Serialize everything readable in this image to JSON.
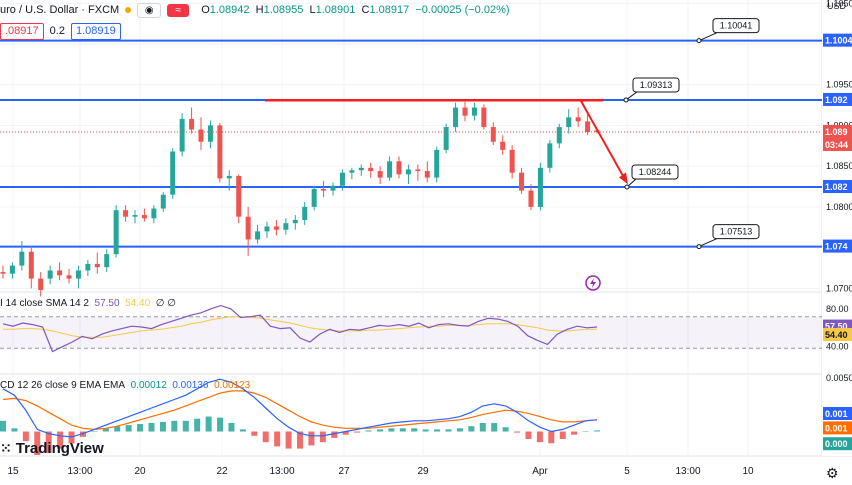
{
  "header": {
    "symbol": "uro / U.S. Dollar · FXCM",
    "open_label": "O",
    "open": "1.08942",
    "high_label": "H",
    "high": "1.08955",
    "low_label": "L",
    "low": "1.08901",
    "close_label": "C",
    "close": "1.08917",
    "change": "−0.00025 (−0.02%)",
    "sell_price": ".08917",
    "spread": "0.2",
    "buy_price": "1.08919",
    "currency": "USD",
    "icons": [
      "eye-icon",
      "wave-icon"
    ]
  },
  "colors": {
    "up": "#26a69a",
    "down": "#ef5350",
    "level": "#2962ff",
    "trend": "#f21f1f",
    "rsi": "#7e57c2",
    "sma": "#f7c948",
    "macd": "#2962ff",
    "signal": "#ff6d00",
    "hist_up": "#26a69a",
    "hist_down": "#ef5350"
  },
  "chart_data": [
    {
      "type": "candlestick",
      "x_tick_labels": [
        "15",
        "13:00",
        "20",
        "22",
        "13:00",
        "27",
        "29",
        "Apr",
        "5",
        "13:00",
        "10"
      ],
      "price_axis_labels": [
        "1.1050",
        "1.1004",
        "1.0950",
        "1.092",
        "1.0900",
        "1.089",
        "03:44",
        "1.0850",
        "1.082",
        "1.0800",
        "1.0750",
        "1.074",
        "1.0700"
      ],
      "ylim": [
        1.0698,
        1.1054
      ],
      "levels": [
        1.10041,
        1.09313,
        1.08244,
        1.07513
      ],
      "level_labels": [
        "1.10041",
        "1.09313",
        "1.08244",
        "1.07513"
      ],
      "resistance_line": 1.0931,
      "projection": {
        "from": 1.093,
        "to": 1.0824
      },
      "candles": [
        [
          1.072,
          1.0728,
          1.0712,
          1.0718
        ],
        [
          1.0718,
          1.0732,
          1.0712,
          1.0728
        ],
        [
          1.0728,
          1.0758,
          1.0722,
          1.0745
        ],
        [
          1.0745,
          1.0752,
          1.07,
          1.0712
        ],
        [
          1.0712,
          1.072,
          1.069,
          1.0698
        ],
        [
          1.0712,
          1.0728,
          1.0705,
          1.0722
        ],
        [
          1.0722,
          1.0732,
          1.071,
          1.0716
        ],
        [
          1.0716,
          1.0724,
          1.0706,
          1.0712
        ],
        [
          1.0712,
          1.0728,
          1.07,
          1.0722
        ],
        [
          1.0722,
          1.0735,
          1.0715,
          1.073
        ],
        [
          1.073,
          1.0744,
          1.0718,
          1.0726
        ],
        [
          1.0726,
          1.0748,
          1.072,
          1.0742
        ],
        [
          1.0742,
          1.0802,
          1.0738,
          1.0796
        ],
        [
          1.0796,
          1.0802,
          1.0782,
          1.0788
        ],
        [
          1.0788,
          1.0796,
          1.078,
          1.079
        ],
        [
          1.079,
          1.0798,
          1.0782,
          1.0786
        ],
        [
          1.0786,
          1.0802,
          1.078,
          1.0798
        ],
        [
          1.0798,
          1.0818,
          1.0794,
          1.0815
        ],
        [
          1.0815,
          1.0872,
          1.081,
          1.0868
        ],
        [
          1.0868,
          1.0915,
          1.0862,
          1.0908
        ],
        [
          1.0908,
          1.0922,
          1.089,
          1.0895
        ],
        [
          1.0895,
          1.091,
          1.087,
          1.088
        ],
        [
          1.088,
          1.0906,
          1.0872,
          1.09
        ],
        [
          1.09,
          1.0903,
          1.083,
          1.0835
        ],
        [
          1.0835,
          1.0845,
          1.082,
          1.0838
        ],
        [
          1.0838,
          1.084,
          1.078,
          1.0788
        ],
        [
          1.0788,
          1.08,
          1.074,
          1.076
        ],
        [
          1.076,
          1.0778,
          1.0755,
          1.077
        ],
        [
          1.077,
          1.0782,
          1.0762,
          1.0776
        ],
        [
          1.0776,
          1.0784,
          1.0765,
          1.0772
        ],
        [
          1.0772,
          1.0786,
          1.0766,
          1.078
        ],
        [
          1.078,
          1.079,
          1.0772,
          1.0784
        ],
        [
          1.0784,
          1.0806,
          1.0778,
          1.08
        ],
        [
          1.08,
          1.0826,
          1.0796,
          1.0822
        ],
        [
          1.0822,
          1.0832,
          1.0812,
          1.082
        ],
        [
          1.082,
          1.083,
          1.0814,
          1.0826
        ],
        [
          1.0826,
          1.0846,
          1.082,
          1.0842
        ],
        [
          1.0842,
          1.0848,
          1.0834,
          1.0845
        ],
        [
          1.0845,
          1.0852,
          1.0838,
          1.0848
        ],
        [
          1.0848,
          1.0854,
          1.0836,
          1.0844
        ],
        [
          1.0844,
          1.085,
          1.0828,
          1.0836
        ],
        [
          1.0836,
          1.0862,
          1.0832,
          1.0856
        ],
        [
          1.0856,
          1.0862,
          1.0835,
          1.084
        ],
        [
          1.084,
          1.0852,
          1.0828,
          1.0846
        ],
        [
          1.0846,
          1.0852,
          1.0832,
          1.0844
        ],
        [
          1.0844,
          1.0856,
          1.083,
          1.0836
        ],
        [
          1.0836,
          1.0874,
          1.083,
          1.087
        ],
        [
          1.087,
          1.0902,
          1.0866,
          1.0898
        ],
        [
          1.0898,
          1.0928,
          1.0892,
          1.0922
        ],
        [
          1.0922,
          1.0929,
          1.0905,
          1.0912
        ],
        [
          1.0912,
          1.0928,
          1.0906,
          1.0922
        ],
        [
          1.0922,
          1.0926,
          1.0895,
          1.0898
        ],
        [
          1.0898,
          1.0904,
          1.0876,
          1.088
        ],
        [
          1.088,
          1.0888,
          1.0864,
          1.087
        ],
        [
          1.087,
          1.0876,
          1.0835,
          1.0842
        ],
        [
          1.0842,
          1.0848,
          1.0816,
          1.082
        ],
        [
          1.082,
          1.0828,
          1.0796,
          1.08
        ],
        [
          1.08,
          1.0854,
          1.0796,
          1.0848
        ],
        [
          1.0848,
          1.0882,
          1.0842,
          1.0878
        ],
        [
          1.0878,
          1.0902,
          1.0872,
          1.0898
        ],
        [
          1.0898,
          1.092,
          1.089,
          1.091
        ],
        [
          1.091,
          1.0922,
          1.0898,
          1.0905
        ],
        [
          1.0905,
          1.0916,
          1.0888,
          1.0892
        ],
        [
          1.0894,
          1.0896,
          1.089,
          1.0892
        ]
      ]
    },
    {
      "type": "line",
      "title": "RSI 14 close SMA 14 2",
      "title_shown": "I 14 close SMA 14 2",
      "rsi_value": "57.50",
      "sma_value": "54.40",
      "extra_values": "∅ ∅",
      "ylim": [
        0,
        100
      ],
      "bands": [
        70,
        30
      ],
      "axis_labels": [
        "80.00",
        "57.50",
        "54.40",
        "40.00"
      ],
      "rsi": [
        61,
        58,
        62,
        60,
        57,
        26,
        32,
        38,
        45,
        42,
        48,
        52,
        55,
        58,
        57,
        55,
        60,
        64,
        68,
        72,
        75,
        80,
        84,
        80,
        69,
        70,
        72,
        58,
        55,
        56,
        43,
        38,
        48,
        54,
        50,
        54,
        53,
        56,
        59,
        58,
        60,
        58,
        62,
        56,
        60,
        61,
        59,
        58,
        64,
        68,
        67,
        64,
        58,
        46,
        40,
        35,
        48,
        54,
        58,
        56,
        57
      ],
      "sma": [
        54,
        54,
        55,
        55,
        54,
        52,
        49,
        46,
        44,
        44,
        44,
        46,
        48,
        50,
        52,
        53,
        54,
        56,
        58,
        61,
        63,
        66,
        68,
        70,
        70,
        69,
        68,
        66,
        64,
        62,
        59,
        56,
        54,
        53,
        52,
        52,
        52,
        53,
        53,
        54,
        55,
        56,
        57,
        58,
        58,
        59,
        59,
        59,
        60,
        61,
        61,
        61,
        60,
        58,
        56,
        53,
        52,
        52,
        53,
        54,
        54
      ]
    },
    {
      "type": "line+bar",
      "title": "MACD 12 26 close 9 EMA EMA",
      "title_shown": "CD 12 26 close 9 EMA EMA",
      "values_shown": [
        "0.00012",
        "0.00136",
        "0.00123"
      ],
      "axis_labels": [
        "0.0050",
        "0.001",
        "0.001",
        "0.000"
      ],
      "ylim": [
        -0.0022,
        0.0052
      ],
      "macd": [
        0.004,
        0.0034,
        0.002,
        0.0002,
        -0.0002,
        -0.0004,
        -0.0005,
        -0.0002,
        0.0002,
        0.0006,
        0.001,
        0.0014,
        0.0018,
        0.0022,
        0.0026,
        0.003,
        0.0034,
        0.004,
        0.0046,
        0.0049,
        0.0046,
        0.004,
        0.0032,
        0.0022,
        0.0012,
        0.0004,
        -0.0002,
        -0.0004,
        -0.0004,
        -0.0002,
        0.0,
        0.0002,
        0.0004,
        0.0006,
        0.0008,
        0.0009,
        0.001,
        0.001,
        0.0011,
        0.0012,
        0.0014,
        0.0018,
        0.0024,
        0.0026,
        0.0024,
        0.0018,
        0.001,
        0.0004,
        0.0,
        0.0002,
        0.0006,
        0.001,
        0.0011
      ],
      "signal": [
        0.003,
        0.0031,
        0.0029,
        0.0024,
        0.0018,
        0.0012,
        0.0006,
        0.0003,
        0.0002,
        0.0003,
        0.0005,
        0.0008,
        0.0011,
        0.0014,
        0.0017,
        0.002,
        0.0024,
        0.0028,
        0.0032,
        0.0036,
        0.0038,
        0.0038,
        0.0036,
        0.0032,
        0.0026,
        0.002,
        0.0014,
        0.0009,
        0.0006,
        0.0004,
        0.0003,
        0.0003,
        0.0003,
        0.0004,
        0.0005,
        0.0006,
        0.0007,
        0.0008,
        0.0009,
        0.001,
        0.0011,
        0.0013,
        0.0016,
        0.0018,
        0.002,
        0.0019,
        0.0017,
        0.0014,
        0.0011,
        0.0009,
        0.0009,
        0.001,
        0.0011
      ],
      "hist": [
        0.001,
        0.0003,
        -0.0009,
        -0.0022,
        -0.002,
        -0.0016,
        -0.0011,
        -0.0005,
        0.0,
        0.0003,
        0.0005,
        0.0006,
        0.0007,
        0.0008,
        0.0009,
        0.001,
        0.001,
        0.0012,
        0.0014,
        0.0013,
        0.0008,
        0.0002,
        -0.0004,
        -0.001,
        -0.0014,
        -0.0016,
        -0.0016,
        -0.0013,
        -0.001,
        -0.0006,
        -0.0003,
        -0.0001,
        0.0001,
        0.0002,
        0.0003,
        0.0003,
        0.0003,
        0.0002,
        0.0002,
        0.0002,
        0.0003,
        0.0005,
        0.0008,
        0.0008,
        0.0004,
        -0.0001,
        -0.0007,
        -0.001,
        -0.0011,
        -0.0007,
        -0.0003,
        0.0,
        0.0001
      ]
    }
  ],
  "branding": {
    "logo_text": "TradingView"
  }
}
